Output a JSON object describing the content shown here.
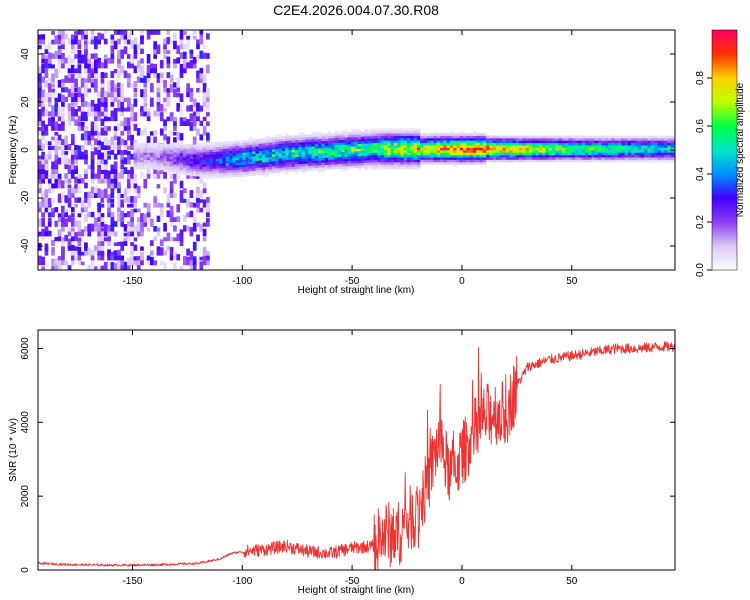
{
  "title": "C2E4.2026.004.07.30.R08",
  "chart_data": [
    {
      "type": "heatmap",
      "title": "C2E4.2026.004.07.30.R08",
      "xlabel": "Height of straight line (km)",
      "ylabel": "Frequency (Hz)",
      "xlim": [
        -193,
        97
      ],
      "ylim": [
        -50,
        50
      ],
      "xticks": [
        "-150",
        "-100",
        "-50",
        "0",
        "50"
      ],
      "xtick_values": [
        -150,
        -100,
        -50,
        0,
        50
      ],
      "yticks": [
        "-40",
        "-20",
        "0",
        "20",
        "40"
      ],
      "ytick_values": [
        -40,
        -20,
        0,
        20,
        40
      ],
      "colorbar": {
        "label": "Normalized spectral amplitude",
        "range": [
          0,
          1
        ],
        "ticks": [
          "0.0",
          "0.2",
          "0.4",
          "0.6",
          "0.8"
        ],
        "tick_values": [
          0.0,
          0.2,
          0.4,
          0.6,
          0.8
        ],
        "colormap": [
          "#ffffff",
          "#d9c8f5",
          "#8c3cf0",
          "#4000ff",
          "#0090ff",
          "#00e8c8",
          "#00ff40",
          "#c0ff00",
          "#ffd000",
          "#ff3000",
          "#ff0060"
        ]
      },
      "ridge": {
        "description_points": [
          {
            "x": -140,
            "freq": -3,
            "amp": 0.15
          },
          {
            "x": -120,
            "freq": -5,
            "amp": 0.3
          },
          {
            "x": -100,
            "freq": -4,
            "amp": 0.45
          },
          {
            "x": -80,
            "freq": -2,
            "amp": 0.5
          },
          {
            "x": -60,
            "freq": -1,
            "amp": 0.55
          },
          {
            "x": -40,
            "freq": 0,
            "amp": 0.6
          },
          {
            "x": -20,
            "freq": 0,
            "amp": 0.75
          },
          {
            "x": 0,
            "freq": 0,
            "amp": 0.95
          },
          {
            "x": 20,
            "freq": 0,
            "amp": 0.85
          },
          {
            "x": 50,
            "freq": 0,
            "amp": 0.65
          },
          {
            "x": 97,
            "freq": 0,
            "amp": 0.5
          }
        ]
      }
    },
    {
      "type": "line",
      "xlabel": "Height of straight line (km)",
      "ylabel": "SNR (10 * v/v)",
      "xlim": [
        -193,
        97
      ],
      "ylim": [
        0,
        6500
      ],
      "xticks": [
        "-150",
        "-100",
        "-50",
        "0",
        "50"
      ],
      "xtick_values": [
        -150,
        -100,
        -50,
        0,
        50
      ],
      "yticks": [
        "0",
        "2000",
        "4000",
        "6000"
      ],
      "ytick_values": [
        0,
        2000,
        4000,
        6000
      ],
      "color": "#ee3333",
      "series": [
        {
          "name": "SNR",
          "x": [
            -193,
            -180,
            -160,
            -140,
            -120,
            -110,
            -105,
            -100,
            -90,
            -80,
            -70,
            -60,
            -50,
            -40,
            -35,
            -30,
            -25,
            -20,
            -15,
            -12,
            -10,
            -8,
            -5,
            0,
            5,
            10,
            15,
            20,
            25,
            30,
            40,
            50,
            60,
            70,
            80,
            90,
            97
          ],
          "y": [
            180,
            150,
            130,
            140,
            180,
            300,
            450,
            500,
            550,
            650,
            500,
            450,
            600,
            650,
            1000,
            900,
            1300,
            1600,
            2500,
            3200,
            3600,
            3000,
            2600,
            3100,
            3700,
            4100,
            4300,
            4200,
            5000,
            5500,
            5700,
            5800,
            5900,
            6000,
            6000,
            6050,
            6050
          ]
        }
      ]
    }
  ]
}
